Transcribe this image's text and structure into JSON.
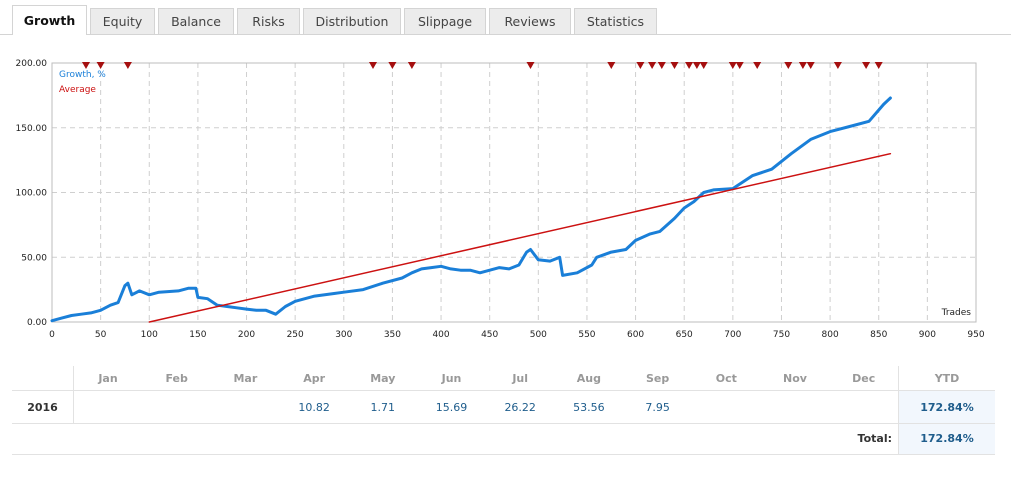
{
  "tabs": [
    {
      "label": "Growth",
      "active": true
    },
    {
      "label": "Equity",
      "active": false
    },
    {
      "label": "Balance",
      "active": false
    },
    {
      "label": "Risks",
      "active": false
    },
    {
      "label": "Distribution",
      "active": false
    },
    {
      "label": "Slippage",
      "active": false
    },
    {
      "label": "Reviews",
      "active": false
    },
    {
      "label": "Statistics",
      "active": false
    }
  ],
  "chart_data": {
    "type": "line",
    "xlabel": "Trades",
    "xlim": [
      0,
      950
    ],
    "ylim": [
      0,
      200
    ],
    "x_ticks": [
      0,
      50,
      100,
      150,
      200,
      250,
      300,
      350,
      400,
      450,
      500,
      550,
      600,
      650,
      700,
      750,
      800,
      850,
      900,
      950
    ],
    "y_ticks": [
      "0.00",
      "50.00",
      "100.00",
      "150.00",
      "200.00"
    ],
    "grid": true,
    "legend_position": "top-left",
    "series": [
      {
        "name": "Growth, %",
        "color": "#1a7fd8",
        "x": [
          0,
          10,
          20,
          30,
          40,
          50,
          60,
          68,
          75,
          78,
          82,
          90,
          100,
          110,
          130,
          140,
          148,
          150,
          160,
          170,
          180,
          190,
          200,
          210,
          220,
          230,
          240,
          250,
          270,
          290,
          300,
          320,
          340,
          360,
          370,
          380,
          390,
          400,
          410,
          420,
          430,
          440,
          450,
          460,
          470,
          480,
          488,
          492,
          500,
          512,
          522,
          525,
          540,
          555,
          560,
          575,
          590,
          600,
          615,
          625,
          640,
          650,
          660,
          670,
          680,
          700,
          720,
          740,
          760,
          780,
          800,
          820,
          840,
          855,
          862
        ],
        "values": [
          1,
          3,
          5,
          6,
          7,
          9,
          13,
          15,
          28,
          30,
          21,
          24,
          21,
          23,
          24,
          26,
          26,
          19,
          18,
          13,
          12,
          11,
          10,
          9,
          9,
          6,
          12,
          16,
          20,
          22,
          23,
          25,
          30,
          34,
          38,
          41,
          42,
          43,
          41,
          40,
          40,
          38,
          40,
          42,
          41,
          44,
          54,
          56,
          48,
          47,
          50,
          36,
          38,
          44,
          50,
          54,
          56,
          63,
          68,
          70,
          80,
          88,
          93,
          100,
          102,
          103,
          113,
          118,
          130,
          141,
          147,
          151,
          155,
          168,
          173
        ]
      },
      {
        "name": "Average",
        "color": "#cc1111",
        "x": [
          100,
          862
        ],
        "values": [
          0,
          130
        ]
      }
    ],
    "markers_x": [
      35,
      50,
      78,
      330,
      350,
      370,
      492,
      575,
      605,
      617,
      627,
      640,
      655,
      663,
      670,
      700,
      707,
      725,
      757,
      772,
      780,
      808,
      837,
      850
    ]
  },
  "monthly": {
    "months": [
      "Jan",
      "Feb",
      "Mar",
      "Apr",
      "May",
      "Jun",
      "Jul",
      "Aug",
      "Sep",
      "Oct",
      "Nov",
      "Dec"
    ],
    "ytd_label": "YTD",
    "year": "2016",
    "values": [
      "",
      "",
      "",
      "10.82",
      "1.71",
      "15.69",
      "26.22",
      "53.56",
      "7.95",
      "",
      "",
      ""
    ],
    "ytd": "172.84%",
    "total_label": "Total:",
    "total_value": "172.84%"
  }
}
